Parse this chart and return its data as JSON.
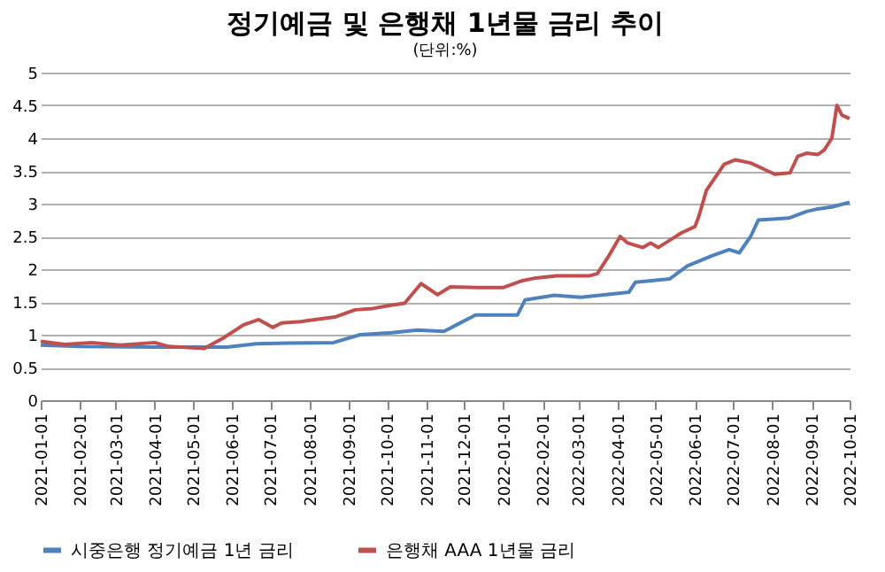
{
  "chart_data": {
    "type": "line",
    "title": "정기예금 및 은행채 1년물 금리 추이",
    "subtitle": "(단위:%)",
    "xlim": [
      "2021-01-01",
      "2022-10-01"
    ],
    "xticks": [
      "2021-01-01",
      "2021-02-01",
      "2021-03-01",
      "2021-04-01",
      "2021-05-01",
      "2021-06-01",
      "2021-07-01",
      "2021-08-01",
      "2021-09-01",
      "2021-10-01",
      "2021-11-01",
      "2021-12-01",
      "2022-01-01",
      "2022-02-01",
      "2022-03-01",
      "2022-04-01",
      "2022-05-01",
      "2022-06-01",
      "2022-07-01",
      "2022-08-01",
      "2022-09-01",
      "2022-10-01"
    ],
    "ylim": [
      0,
      5
    ],
    "yticks": [
      0,
      0.5,
      1,
      1.5,
      2,
      2.5,
      3,
      3.5,
      4,
      4.5,
      5
    ],
    "grid": "y",
    "legend": "bottom",
    "marker": "none",
    "line_style": "solid",
    "series": [
      {
        "name": "시중은행 정기예금 1년 금리",
        "color": "#4f81bd",
        "x": [
          "2021-01-01",
          "2021-02-01",
          "2021-04-01",
          "2021-05-28",
          "2021-06-20",
          "2021-07-15",
          "2021-08-20",
          "2021-09-10",
          "2021-10-05",
          "2021-10-25",
          "2021-11-15",
          "2021-11-25",
          "2021-12-10",
          "2022-01-12",
          "2022-01-18",
          "2022-02-10",
          "2022-03-03",
          "2022-04-10",
          "2022-04-15",
          "2022-05-12",
          "2022-05-26",
          "2022-06-14",
          "2022-06-28",
          "2022-07-06",
          "2022-07-15",
          "2022-07-21",
          "2022-08-14",
          "2022-08-28",
          "2022-09-06",
          "2022-09-17",
          "2022-10-01"
        ],
        "values": [
          0.84,
          0.82,
          0.81,
          0.81,
          0.86,
          0.87,
          0.88,
          1.0,
          1.03,
          1.07,
          1.05,
          1.15,
          1.3,
          1.3,
          1.53,
          1.6,
          1.57,
          1.65,
          1.8,
          1.85,
          2.05,
          2.2,
          2.3,
          2.25,
          2.5,
          2.75,
          2.78,
          2.88,
          2.92,
          2.95,
          3.02
        ]
      },
      {
        "name": "은행채 AAA 1년물 금리",
        "color": "#c0504d",
        "x": [
          "2021-01-01",
          "2021-01-20",
          "2021-02-10",
          "2021-03-05",
          "2021-04-01",
          "2021-04-12",
          "2021-05-10",
          "2021-05-25",
          "2021-06-10",
          "2021-06-22",
          "2021-07-03",
          "2021-07-10",
          "2021-07-25",
          "2021-08-05",
          "2021-08-21",
          "2021-09-06",
          "2021-09-20",
          "2021-10-04",
          "2021-10-15",
          "2021-10-28",
          "2021-11-10",
          "2021-11-20",
          "2021-12-12",
          "2022-01-01",
          "2022-01-15",
          "2022-01-25",
          "2022-02-12",
          "2022-03-10",
          "2022-03-16",
          "2022-03-25",
          "2022-04-03",
          "2022-04-09",
          "2022-04-21",
          "2022-04-27",
          "2022-05-03",
          "2022-05-21",
          "2022-06-01",
          "2022-06-04",
          "2022-06-10",
          "2022-06-24",
          "2022-07-03",
          "2022-07-15",
          "2022-07-25",
          "2022-08-03",
          "2022-08-15",
          "2022-08-21",
          "2022-08-28",
          "2022-09-06",
          "2022-09-11",
          "2022-09-17",
          "2022-09-21",
          "2022-09-25",
          "2022-10-01"
        ],
        "values": [
          0.9,
          0.85,
          0.88,
          0.84,
          0.88,
          0.82,
          0.79,
          0.95,
          1.15,
          1.23,
          1.11,
          1.18,
          1.2,
          1.23,
          1.27,
          1.38,
          1.4,
          1.45,
          1.48,
          1.78,
          1.61,
          1.73,
          1.72,
          1.72,
          1.82,
          1.86,
          1.9,
          1.9,
          1.93,
          2.2,
          2.5,
          2.4,
          2.33,
          2.4,
          2.33,
          2.55,
          2.65,
          2.8,
          3.2,
          3.6,
          3.67,
          3.62,
          3.53,
          3.45,
          3.47,
          3.72,
          3.77,
          3.75,
          3.82,
          4.0,
          4.5,
          4.35,
          4.3
        ]
      }
    ]
  }
}
